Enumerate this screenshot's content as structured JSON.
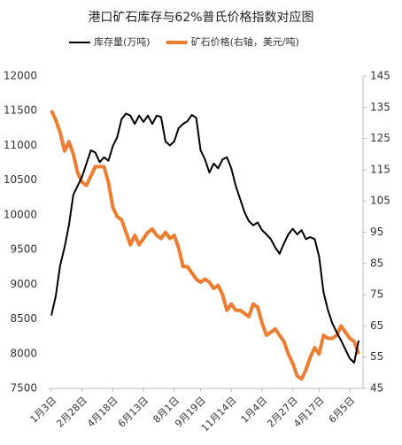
{
  "chart_data": {
    "type": "line",
    "title": "港口矿石库存与62%普氏价格指数对应图",
    "categories": [
      "1月3日",
      null,
      null,
      null,
      null,
      null,
      null,
      "2月28日",
      null,
      null,
      null,
      null,
      null,
      null,
      "4月18日",
      null,
      null,
      null,
      null,
      null,
      null,
      "6月13日",
      null,
      null,
      null,
      null,
      null,
      null,
      "8月1日",
      null,
      null,
      null,
      null,
      null,
      "9月19日",
      null,
      null,
      null,
      null,
      null,
      null,
      "11月14日",
      null,
      null,
      null,
      null,
      null,
      null,
      "1月4日",
      null,
      null,
      null,
      null,
      null,
      null,
      "2月27日",
      null,
      null,
      null,
      null,
      null,
      "4月17日",
      null,
      null,
      null,
      null,
      null,
      null,
      "6月5日",
      null,
      null
    ],
    "series": [
      {
        "name": "库存量(万吨)",
        "color": "#000000",
        "values": [
          8550,
          8830,
          9270,
          9530,
          9850,
          10290,
          10420,
          10550,
          10740,
          10930,
          10900,
          10760,
          10830,
          10780,
          10990,
          11120,
          11380,
          11460,
          11430,
          11310,
          11430,
          11340,
          11430,
          11310,
          11430,
          11410,
          11060,
          11000,
          11060,
          11250,
          11310,
          11350,
          11440,
          11400,
          10930,
          10800,
          10610,
          10740,
          10670,
          10800,
          10830,
          10670,
          10420,
          10230,
          10040,
          9910,
          9850,
          9890,
          9780,
          9720,
          9650,
          9530,
          9440,
          9590,
          9720,
          9800,
          9720,
          9780,
          9650,
          9680,
          9650,
          9400,
          8890,
          8630,
          8440,
          8310,
          8190,
          8060,
          7930,
          7870,
          8190
        ]
      },
      {
        "name": "矿石价格(右轴，美元/吨)",
        "color": "#ed7d31",
        "axis": "y2",
        "values": [
          134,
          131,
          127,
          121,
          124,
          120,
          114,
          111,
          110,
          113,
          116,
          116,
          116,
          111,
          103,
          100,
          99,
          95,
          91,
          94,
          91,
          93,
          95,
          96,
          94,
          93,
          95,
          93,
          94,
          90,
          84,
          84,
          82,
          80,
          79,
          80,
          79,
          77,
          78,
          75,
          70,
          72,
          70,
          70,
          69,
          68,
          72,
          71,
          66,
          62,
          63,
          64,
          62,
          60,
          56,
          53,
          49,
          48,
          51,
          55,
          58,
          56,
          62,
          61,
          61,
          62,
          65,
          63,
          61,
          60,
          56
        ]
      }
    ],
    "ylim": [
      7500,
      12000
    ],
    "yticks": [
      7500,
      8000,
      8500,
      9000,
      9500,
      10000,
      10500,
      11000,
      11500,
      12000
    ],
    "y2lim": [
      45,
      145
    ],
    "y2ticks": [
      45,
      55,
      65,
      75,
      85,
      95,
      105,
      115,
      125,
      135,
      145
    ],
    "legend": "top"
  }
}
